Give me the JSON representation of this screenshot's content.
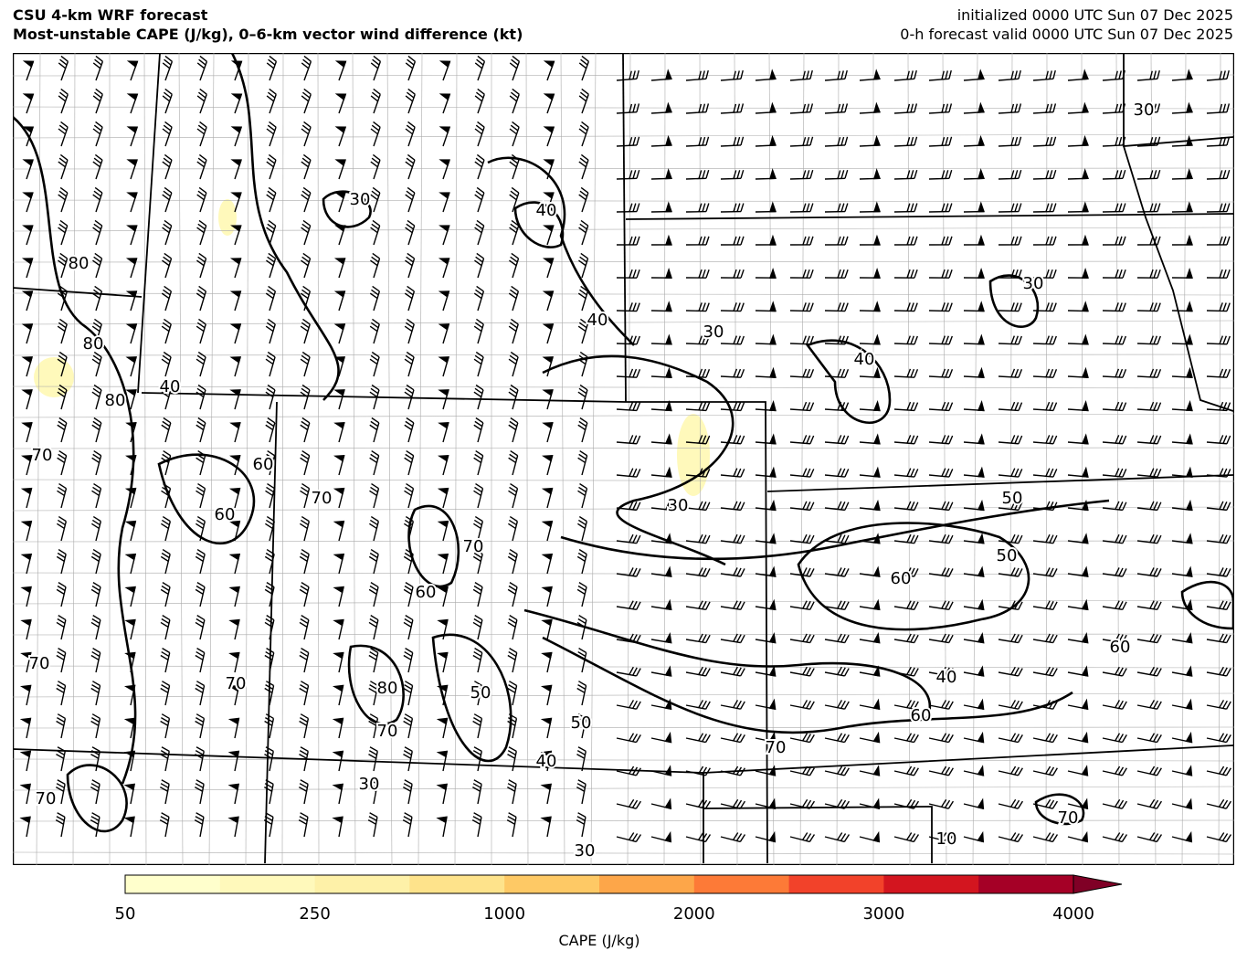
{
  "header": {
    "title": "CSU 4-km WRF forecast",
    "subtitle": "Most-unstable CAPE (J/kg), 0–6-km vector wind difference (kt)",
    "init": "initialized 0000 UTC Sun 07 Dec 2025",
    "valid": "0-h forecast valid 0000 UTC Sun 07 Dec 2025"
  },
  "colorbar": {
    "title": "CAPE (J/kg)",
    "tick_labels": [
      "50",
      "250",
      "1000",
      "2000",
      "3000",
      "4000"
    ],
    "colors": [
      "#ffffcc",
      "#fff9bb",
      "#fef1a8",
      "#fee38b",
      "#fec965",
      "#fda649",
      "#fd7a37",
      "#f2422a",
      "#d3151f",
      "#a50026"
    ],
    "extend_color": "#800026"
  },
  "map": {
    "contour_labels": [
      "30",
      "40",
      "30",
      "40",
      "30",
      "40",
      "30",
      "40",
      "30",
      "50",
      "60",
      "60",
      "40",
      "60",
      "70",
      "70",
      "50",
      "60",
      "70",
      "80",
      "80",
      "70",
      "70",
      "70",
      "80",
      "70",
      "60",
      "50",
      "40",
      "30",
      "50",
      "30",
      "60",
      "10",
      "70",
      "80",
      "70"
    ],
    "cape_fill_color": "#fff9bb"
  }
}
